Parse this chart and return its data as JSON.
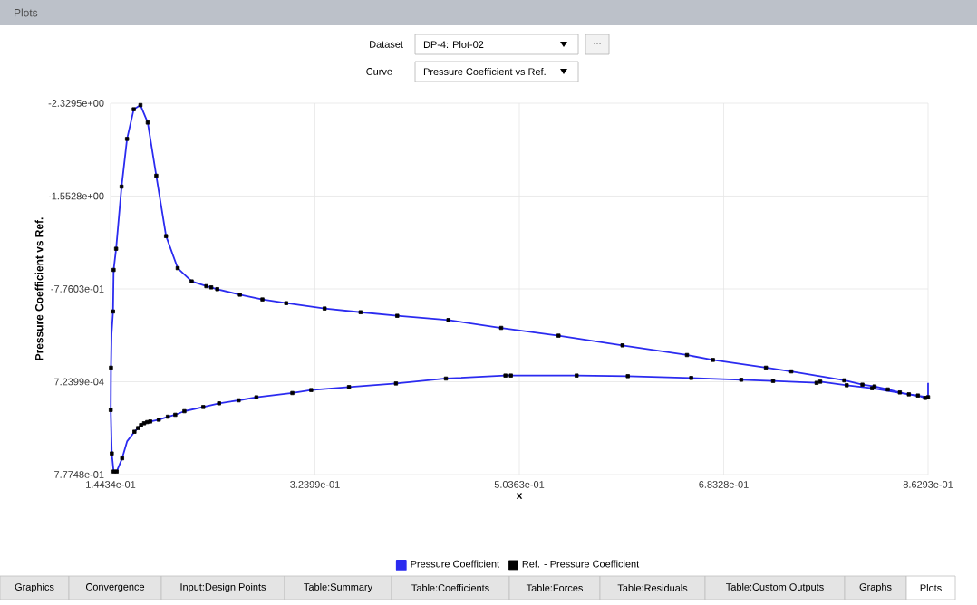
{
  "chart_data": {
    "type": "line",
    "title": "Plots",
    "annotations": [
      "Dataset",
      "DP-4: Plot-02",
      "...",
      "Curve",
      "Pressure Coefficient vs Ref.",
      "Graphics",
      "Convergence",
      "Input:Design Points",
      "Table:Summary",
      "Table:Coefficients",
      "Table:Forces",
      "Table:Residuals",
      "Table:Custom Outputs",
      "Graphs",
      "Plots"
    ],
    "xlabel": "x",
    "ylabel": "Pressure Coefficient vs Ref.",
    "xlim": [
      0.14434,
      0.86293
    ],
    "xticks": [
      {
        "value": 0.14434,
        "label": "1.4434e-01"
      },
      {
        "value": 0.32399,
        "label": "3.2399e-01"
      },
      {
        "value": 0.50363,
        "label": "5.0363e-01"
      },
      {
        "value": 0.68328,
        "label": "6.8328e-01"
      },
      {
        "value": 0.86293,
        "label": "8.6293e-01"
      }
    ],
    "ylim": [
      0.77748,
      -2.3295
    ],
    "yticks": [
      {
        "value": -2.3295,
        "label": "-2.3295e+00"
      },
      {
        "value": -1.5528,
        "label": "-1.5528e+00"
      },
      {
        "value": -0.77603,
        "label": "-7.7603e-01"
      },
      {
        "value": 0.00072399,
        "label": "7.2399e-04"
      },
      {
        "value": 0.77748,
        "label": "7.7748e-01"
      }
    ],
    "grid": true,
    "legend": "bottom",
    "series": [
      {
        "name": "Pressure Coefficient",
        "color": "#2b2bf0",
        "x": [
          0.8629,
          0.8629,
          0.855,
          0.8137,
          0.7914,
          0.7681,
          0.7649,
          0.7267,
          0.6987,
          0.6547,
          0.599,
          0.554,
          0.4962,
          0.4914,
          0.4391,
          0.3952,
          0.3539,
          0.3207,
          0.3041,
          0.2725,
          0.2569,
          0.2397,
          0.2258,
          0.2092,
          0.2012,
          0.1947,
          0.1867,
          0.1792,
          0.1765,
          0.1738,
          0.1711,
          0.1685,
          0.1653,
          0.1588,
          0.1545,
          0.1497,
          0.147,
          0.1454,
          0.1445,
          0.1447,
          0.1452,
          0.1465,
          0.147,
          0.1492,
          0.154,
          0.1588,
          0.1647,
          0.1706,
          0.177,
          0.1845,
          0.1931,
          0.2033,
          0.2156,
          0.2285,
          0.2328,
          0.2381,
          0.258,
          0.2778,
          0.2987,
          0.3325,
          0.3641,
          0.3963,
          0.4413,
          0.4877,
          0.5381,
          0.5943,
          0.651,
          0.6738,
          0.7204,
          0.7427,
          0.7893,
          0.8052,
          0.8158,
          0.8275,
          0.8381,
          0.846,
          0.854,
          0.8603,
          0.8629
        ],
        "values": [
          0.01,
          0.13,
          0.12,
          0.055,
          0.03,
          0.0,
          0.01,
          -0.006,
          -0.016,
          -0.031,
          -0.046,
          -0.051,
          -0.051,
          -0.051,
          -0.026,
          0.015,
          0.045,
          0.07,
          0.095,
          0.131,
          0.156,
          0.181,
          0.212,
          0.247,
          0.277,
          0.293,
          0.318,
          0.333,
          0.338,
          0.348,
          0.363,
          0.388,
          0.419,
          0.5,
          0.641,
          0.752,
          0.752,
          0.601,
          0.237,
          -0.117,
          -0.4,
          -0.587,
          -0.935,
          -1.112,
          -1.632,
          -2.031,
          -2.279,
          -2.314,
          -2.168,
          -1.723,
          -1.218,
          -0.95,
          -0.839,
          -0.799,
          -0.789,
          -0.774,
          -0.728,
          -0.688,
          -0.657,
          -0.612,
          -0.581,
          -0.551,
          -0.516,
          -0.45,
          -0.385,
          -0.304,
          -0.223,
          -0.182,
          -0.117,
          -0.086,
          -0.011,
          0.025,
          0.04,
          0.065,
          0.09,
          0.106,
          0.116,
          0.136,
          0.136
        ]
      },
      {
        "name": "Ref. - Pressure Coefficient",
        "type": "scatter",
        "marker": "square",
        "color": "#000000",
        "x": [
          0.8629,
          0.8137,
          0.7914,
          0.7681,
          0.7649,
          0.7267,
          0.6987,
          0.6547,
          0.599,
          0.554,
          0.4962,
          0.4914,
          0.4391,
          0.3952,
          0.3539,
          0.3207,
          0.3041,
          0.2725,
          0.2569,
          0.2397,
          0.2258,
          0.2092,
          0.2012,
          0.1947,
          0.1867,
          0.1792,
          0.1765,
          0.1738,
          0.1711,
          0.1685,
          0.1653,
          0.1545,
          0.1497,
          0.147,
          0.1454,
          0.1445,
          0.1447,
          0.1465,
          0.147,
          0.1492,
          0.154,
          0.1588,
          0.1647,
          0.1706,
          0.177,
          0.1845,
          0.1931,
          0.2033,
          0.2156,
          0.2285,
          0.2328,
          0.2381,
          0.258,
          0.2778,
          0.2987,
          0.3325,
          0.3641,
          0.3963,
          0.4413,
          0.4877,
          0.5381,
          0.5943,
          0.651,
          0.6738,
          0.7204,
          0.7427,
          0.7893,
          0.8052,
          0.8158,
          0.8275,
          0.8381,
          0.846,
          0.854,
          0.8603
        ],
        "values": [
          0.13,
          0.055,
          0.03,
          0.0,
          0.01,
          -0.006,
          -0.016,
          -0.031,
          -0.046,
          -0.051,
          -0.051,
          -0.051,
          -0.026,
          0.015,
          0.045,
          0.07,
          0.095,
          0.131,
          0.156,
          0.181,
          0.212,
          0.247,
          0.277,
          0.293,
          0.318,
          0.333,
          0.338,
          0.348,
          0.363,
          0.388,
          0.419,
          0.641,
          0.752,
          0.752,
          0.601,
          0.237,
          -0.117,
          -0.587,
          -0.935,
          -1.112,
          -1.632,
          -2.031,
          -2.279,
          -2.314,
          -2.168,
          -1.723,
          -1.218,
          -0.95,
          -0.839,
          -0.799,
          -0.789,
          -0.774,
          -0.728,
          -0.688,
          -0.657,
          -0.612,
          -0.581,
          -0.551,
          -0.516,
          -0.45,
          -0.385,
          -0.304,
          -0.223,
          -0.182,
          -0.117,
          -0.086,
          -0.011,
          0.025,
          0.04,
          0.065,
          0.09,
          0.106,
          0.116,
          0.136
        ]
      }
    ]
  }
}
